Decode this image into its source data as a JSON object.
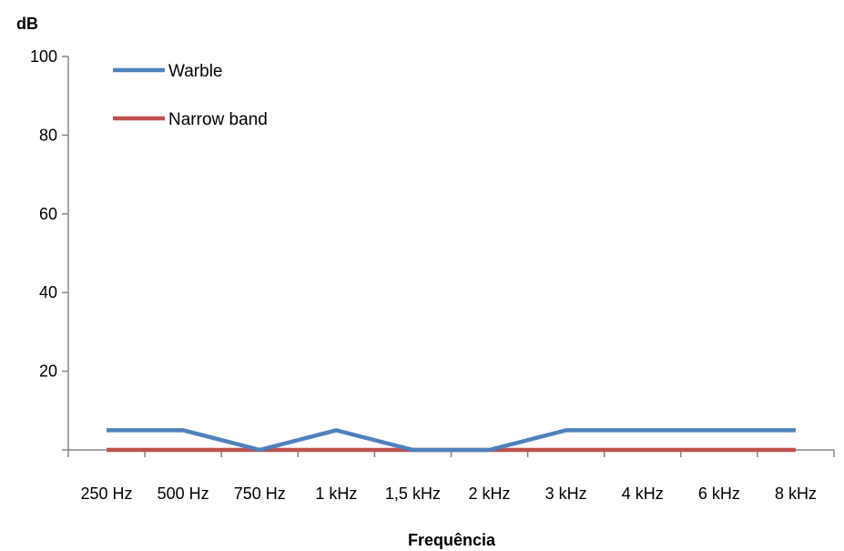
{
  "chart_data": {
    "type": "line",
    "ylabel": "dB",
    "xlabel": "Frequência",
    "ylim": [
      0,
      100
    ],
    "yticks": [
      20,
      40,
      60,
      80,
      100
    ],
    "categories": [
      "250 Hz",
      "500 Hz",
      "750 Hz",
      "1 kHz",
      "1,5 kHz",
      "2 kHz",
      "3 kHz",
      "4 kHz",
      "6 kHz",
      "8 kHz"
    ],
    "legend_position": "top-left",
    "grid": false,
    "series": [
      {
        "name": "Warble",
        "color": "#4f81bd",
        "values": [
          5,
          5,
          0,
          5,
          0,
          0,
          5,
          5,
          5,
          5
        ]
      },
      {
        "name": "Narrow band",
        "color": "#c0504d",
        "values": [
          0,
          0,
          0,
          0,
          0,
          0,
          0,
          0,
          0,
          0
        ]
      }
    ]
  }
}
